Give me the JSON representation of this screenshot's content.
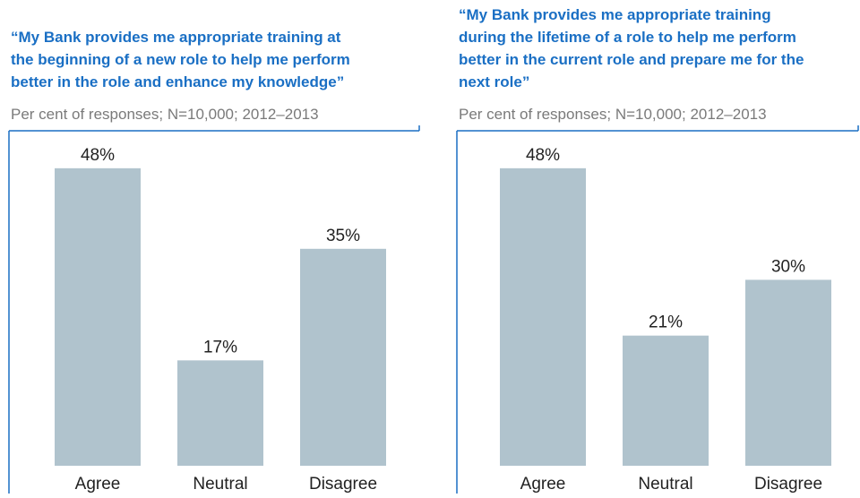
{
  "chart_data": [
    {
      "type": "bar",
      "title": [
        "“My Bank provides me appropriate training at",
        "the beginning of a new role to help me perform",
        "better in the role and enhance my knowledge”"
      ],
      "subtitle": "Per cent of responses; N=10,000; 2012–2013",
      "categories": [
        "Agree",
        "Neutral",
        "Disagree"
      ],
      "values": [
        48,
        17,
        35
      ],
      "value_labels": [
        "48%",
        "17%",
        "35%"
      ],
      "color": "#b0c3cd"
    },
    {
      "type": "bar",
      "title": [
        "“My Bank provides me appropriate training",
        "during the lifetime of a role to help me perform",
        "better in the current role and prepare me for the",
        "next role”"
      ],
      "subtitle": "Per cent of responses; N=10,000; 2012–2013",
      "categories": [
        "Agree",
        "Neutral",
        "Disagree"
      ],
      "values": [
        48,
        21,
        30
      ],
      "value_labels": [
        "48%",
        "21%",
        "30%"
      ],
      "color": "#b0c3cd"
    }
  ]
}
